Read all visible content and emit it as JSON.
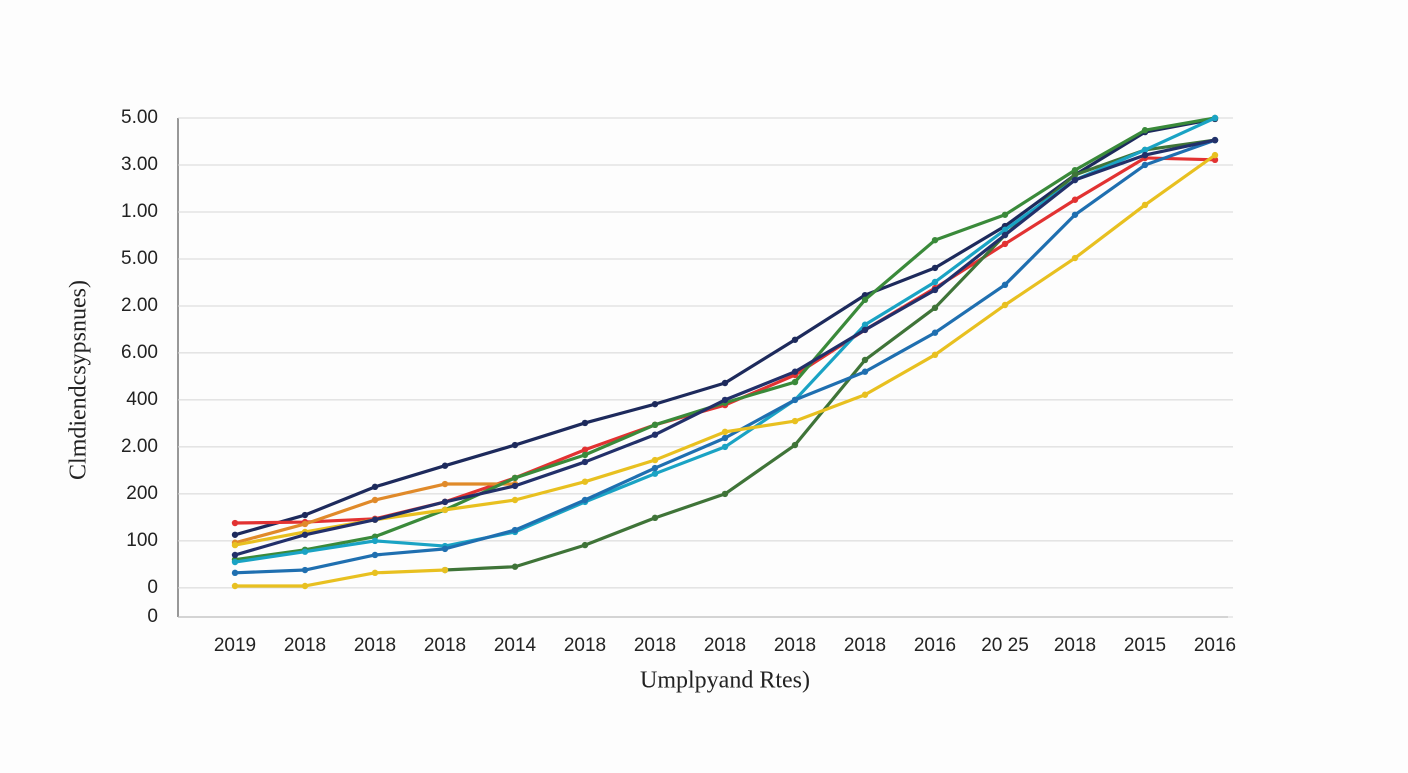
{
  "chart_data": {
    "type": "line",
    "x_label": "Umplpyand Rtes)",
    "y_label": "Clmdiendcsypsnues)",
    "categories": [
      "2019",
      "2018",
      "2018",
      "2018",
      "2014",
      "2018",
      "2018",
      "2018",
      "2018",
      "2018",
      "2016",
      "20 25",
      "2018",
      "2015",
      "2016"
    ],
    "ylim": [
      -62,
      1000
    ],
    "yticks": [
      {
        "value": -62,
        "label": "0"
      },
      0,
      100,
      200,
      {
        "value": 300,
        "label": "2.00"
      },
      400,
      {
        "value": 500,
        "label": "6.00"
      },
      {
        "value": 600,
        "label": "2.00"
      },
      {
        "value": 700,
        "label": "5.00"
      },
      {
        "value": 800,
        "label": "1.00"
      },
      {
        "value": 900,
        "label": "3.00"
      },
      {
        "value": 1000,
        "label": "5.00"
      }
    ],
    "grid": true,
    "series": [
      {
        "color": "#1d2a5c",
        "values": [
          113,
          155,
          215,
          260,
          304,
          351,
          391,
          436,
          528,
          623,
          681,
          770,
          879,
          970,
          998
        ]
      },
      {
        "color": "#e23232",
        "values": [
          138,
          140,
          147,
          183,
          234,
          294,
          347,
          389,
          453,
          549,
          638,
          732,
          826,
          915,
          911
        ]
      },
      {
        "color": "#e08a2a",
        "values": [
          96,
          136,
          187,
          221,
          221,
          null,
          null,
          null,
          null,
          null,
          null,
          null,
          null,
          null,
          null
        ]
      },
      {
        "color": "#3a8a3a",
        "values": [
          60,
          81,
          109,
          166,
          234,
          283,
          347,
          394,
          438,
          613,
          740,
          794,
          889,
          974,
          1000
        ]
      },
      {
        "color": "#3f7438",
        "values": [
          null,
          null,
          null,
          38,
          45,
          91,
          149,
          200,
          304,
          485,
          596,
          751,
          879,
          932,
          953
        ]
      },
      {
        "color": "#1aa3c4",
        "values": [
          55,
          77,
          100,
          89,
          119,
          183,
          243,
          300,
          400,
          560,
          651,
          762,
          868,
          932,
          1000
        ]
      },
      {
        "color": "#1f6fb0",
        "values": [
          32,
          38,
          70,
          83,
          123,
          187,
          255,
          319,
          400,
          460,
          543,
          645,
          794,
          900,
          953
        ]
      },
      {
        "color": "#e8c020",
        "values": [
          91,
          119,
          145,
          166,
          187,
          226,
          272,
          332,
          355,
          411,
          496,
          602,
          702,
          815,
          921
        ]
      },
      {
        "color": "#e8c020",
        "values": [
          4,
          4,
          32,
          38,
          null,
          null,
          null,
          null,
          null,
          null,
          null,
          null,
          null,
          null,
          null
        ]
      },
      {
        "color": "#22306a",
        "values": [
          70,
          113,
          145,
          183,
          217,
          268,
          326,
          400,
          460,
          549,
          634,
          751,
          868,
          921,
          953
        ]
      }
    ]
  }
}
